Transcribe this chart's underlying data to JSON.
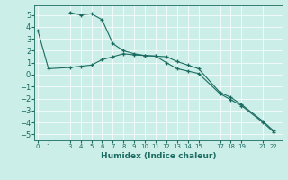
{
  "xlabel": "Humidex (Indice chaleur)",
  "background_color": "#cceee8",
  "line_color": "#1a6b60",
  "grid_color": "#aaddcc",
  "x_ticks": [
    0,
    1,
    3,
    4,
    5,
    6,
    7,
    8,
    9,
    10,
    11,
    12,
    13,
    14,
    15,
    17,
    18,
    19,
    21,
    22
  ],
  "x_tick_labels": [
    "0",
    "1",
    "3",
    "4",
    "5",
    "6",
    "7",
    "8",
    "9",
    "10",
    "11",
    "12",
    "13",
    "14",
    "15",
    "17",
    "18",
    "19",
    "21",
    "22"
  ],
  "xlim": [
    -0.3,
    22.8
  ],
  "ylim": [
    -5.5,
    5.8
  ],
  "y_ticks": [
    -5,
    -4,
    -3,
    -2,
    -1,
    0,
    1,
    2,
    3,
    4,
    5
  ],
  "line1_x": [
    0,
    1,
    3,
    4,
    5,
    6,
    7,
    8,
    9,
    10,
    11,
    12,
    13,
    14,
    15,
    17,
    18,
    19,
    21,
    22
  ],
  "line1_y": [
    3.7,
    0.5,
    0.6,
    0.7,
    0.8,
    1.25,
    1.5,
    1.75,
    1.65,
    1.6,
    1.55,
    1.0,
    0.5,
    0.3,
    0.1,
    -1.6,
    -2.1,
    -2.6,
    -4.0,
    -4.8
  ],
  "line2_x": [
    3,
    4,
    5,
    6,
    7,
    8,
    9,
    10,
    11,
    12,
    13,
    14,
    15,
    17,
    18,
    19,
    21,
    22
  ],
  "line2_y": [
    5.2,
    5.0,
    5.1,
    4.6,
    2.6,
    2.0,
    1.75,
    1.6,
    1.55,
    1.5,
    1.1,
    0.8,
    0.5,
    -1.5,
    -1.9,
    -2.5,
    -3.9,
    -4.7
  ],
  "xlabel_fontsize": 6.5,
  "tick_fontsize_x": 5.0,
  "tick_fontsize_y": 6.0,
  "linewidth": 0.8,
  "markersize": 3.5
}
